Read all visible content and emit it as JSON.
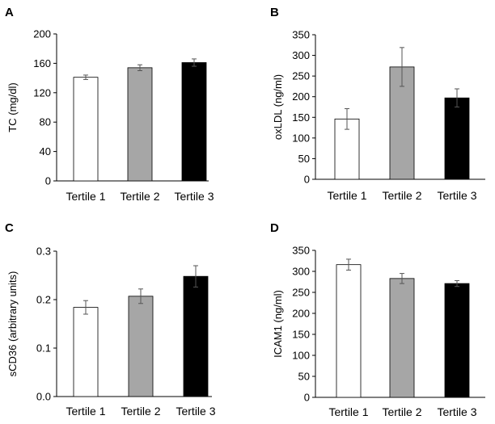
{
  "chart_data": [
    {
      "panel": "A",
      "type": "bar",
      "categories": [
        "Tertile 1",
        "Tertile 2",
        "Tertile 3"
      ],
      "values": [
        141,
        154,
        161
      ],
      "errors": [
        3,
        4,
        5
      ],
      "colors": [
        "#ffffff",
        "#a6a6a6",
        "#000000"
      ],
      "ylabel": "TC (mg/dl)",
      "ylim": [
        0,
        200
      ],
      "yticks": [
        0,
        40,
        80,
        120,
        160,
        200
      ]
    },
    {
      "panel": "B",
      "type": "bar",
      "categories": [
        "Tertile 1",
        "Tertile 2",
        "Tertile 3"
      ],
      "values": [
        146,
        272,
        197
      ],
      "errors": [
        25,
        47,
        22
      ],
      "colors": [
        "#ffffff",
        "#a6a6a6",
        "#000000"
      ],
      "ylabel": "oxLDL (ng/ml)",
      "ylim": [
        0,
        350
      ],
      "yticks": [
        0,
        50,
        100,
        150,
        200,
        250,
        300,
        350
      ]
    },
    {
      "panel": "C",
      "type": "bar",
      "categories": [
        "Tertile 1",
        "Tertile 2",
        "Tertile 3"
      ],
      "values": [
        0.184,
        0.207,
        0.248
      ],
      "errors": [
        0.014,
        0.015,
        0.022
      ],
      "colors": [
        "#ffffff",
        "#a6a6a6",
        "#000000"
      ],
      "ylabel": "sCD36 (arbitrary units)",
      "ylim": [
        0,
        0.3
      ],
      "yticks": [
        "0.0",
        "0.1",
        "0.2",
        "0.3"
      ]
    },
    {
      "panel": "D",
      "type": "bar",
      "categories": [
        "Tertile 1",
        "Tertile 2",
        "Tertile 3"
      ],
      "values": [
        316,
        283,
        271
      ],
      "errors": [
        13,
        12,
        7
      ],
      "colors": [
        "#ffffff",
        "#a6a6a6",
        "#000000"
      ],
      "ylabel": "ICAM1 (ng/ml)",
      "ylim": [
        0,
        350
      ],
      "yticks": [
        0,
        50,
        100,
        150,
        200,
        250,
        300,
        350
      ]
    }
  ]
}
